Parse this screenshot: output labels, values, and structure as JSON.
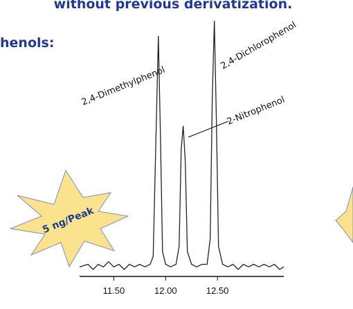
{
  "chart_data": {
    "type": "line",
    "title": "without previous derivatization.",
    "subtitle": "henols:",
    "badge": "5 ng/Peak",
    "annotations": [
      "2,4-Dimethylphenol",
      "2-Nitrophenol",
      "2,4-Dichlorophenol"
    ],
    "color": "#222222",
    "xlim": [
      11.17,
      13.14
    ],
    "ylim": [
      0,
      100
    ],
    "xticks": [
      {
        "value": 11.5,
        "label": "11.50"
      },
      {
        "value": 12.0,
        "label": "12.00"
      },
      {
        "value": 12.5,
        "label": "12.50"
      }
    ],
    "x": [
      11.17,
      11.25,
      11.3,
      11.35,
      11.4,
      11.45,
      11.5,
      11.55,
      11.6,
      11.65,
      11.7,
      11.75,
      11.8,
      11.85,
      11.88,
      11.91,
      11.93,
      11.95,
      11.97,
      12.0,
      12.05,
      12.1,
      12.13,
      12.15,
      12.17,
      12.19,
      12.21,
      12.25,
      12.3,
      12.35,
      12.4,
      12.43,
      12.45,
      12.47,
      12.49,
      12.51,
      12.55,
      12.6,
      12.65,
      12.7,
      12.75,
      12.8,
      12.85,
      12.9,
      12.95,
      13.0,
      13.05,
      13.1,
      13.14
    ],
    "values": [
      4,
      5,
      3,
      5,
      4,
      6,
      4,
      5,
      3,
      5,
      4,
      5,
      4,
      5,
      8,
      60,
      94,
      55,
      10,
      5,
      4,
      5,
      12,
      50,
      59,
      45,
      10,
      5,
      4,
      5,
      5,
      15,
      70,
      100,
      60,
      12,
      5,
      4,
      5,
      3,
      5,
      4,
      5,
      4,
      5,
      4,
      5,
      3,
      4
    ]
  }
}
